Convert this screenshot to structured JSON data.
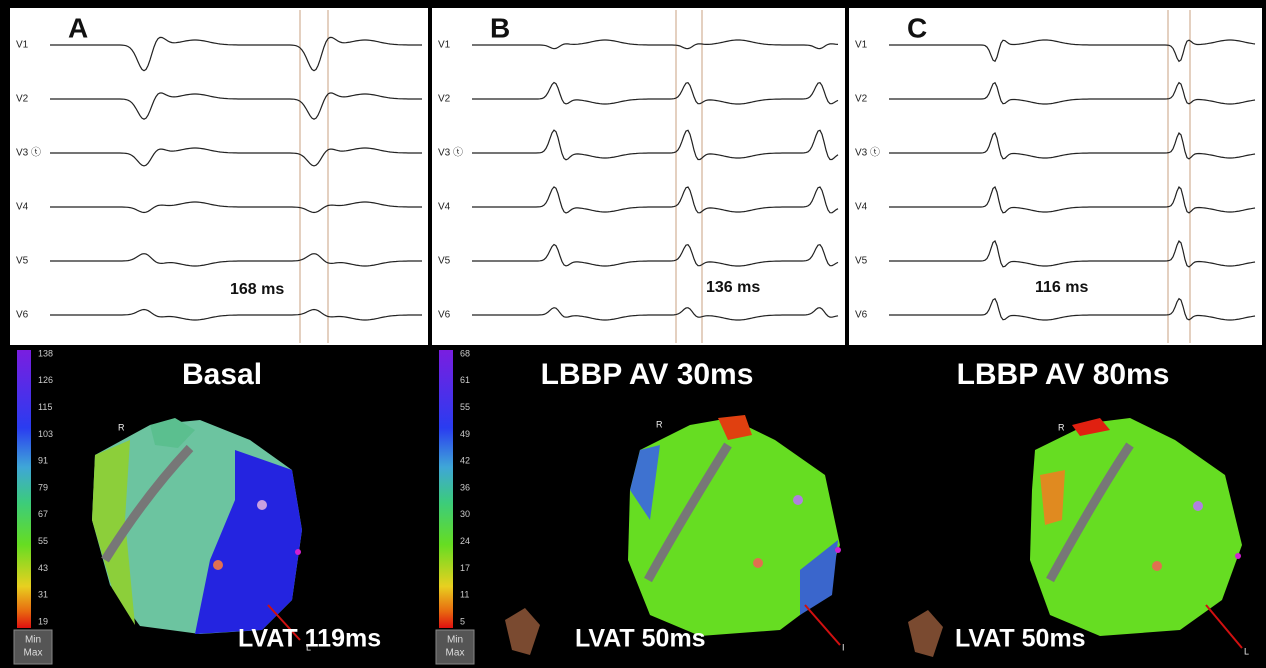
{
  "panels": [
    {
      "label": "A",
      "leads": [
        "V1",
        "V2",
        "V3 ⓣ",
        "V4",
        "V5",
        "V6"
      ],
      "interval": "168 ms",
      "title": "Basal",
      "scale": [
        138,
        126,
        115,
        103,
        91,
        79,
        67,
        55,
        43,
        31,
        19
      ],
      "button": [
        "Min",
        "Max"
      ],
      "lvat": "LVAT 119ms",
      "orientation": [
        "R",
        "L"
      ]
    },
    {
      "label": "B",
      "leads": [
        "V1",
        "V2",
        "V3 ⓣ",
        "V4",
        "V5",
        "V6"
      ],
      "interval": "136 ms",
      "title": "LBBP AV 30ms",
      "scale": [
        68,
        61,
        55,
        49,
        42,
        36,
        30,
        24,
        17,
        11,
        5
      ],
      "button": [
        "Min",
        "Max"
      ],
      "lvat": "LVAT 50ms",
      "orientation": [
        "R",
        "I"
      ]
    },
    {
      "label": "C",
      "leads": [
        "V1",
        "V2",
        "V3 ⓣ",
        "V4",
        "V5",
        "V6"
      ],
      "interval": "116 ms",
      "title": "LBBP AV 80ms",
      "lvat": "LVAT 50ms",
      "orientation": [
        "R",
        "L"
      ]
    }
  ]
}
